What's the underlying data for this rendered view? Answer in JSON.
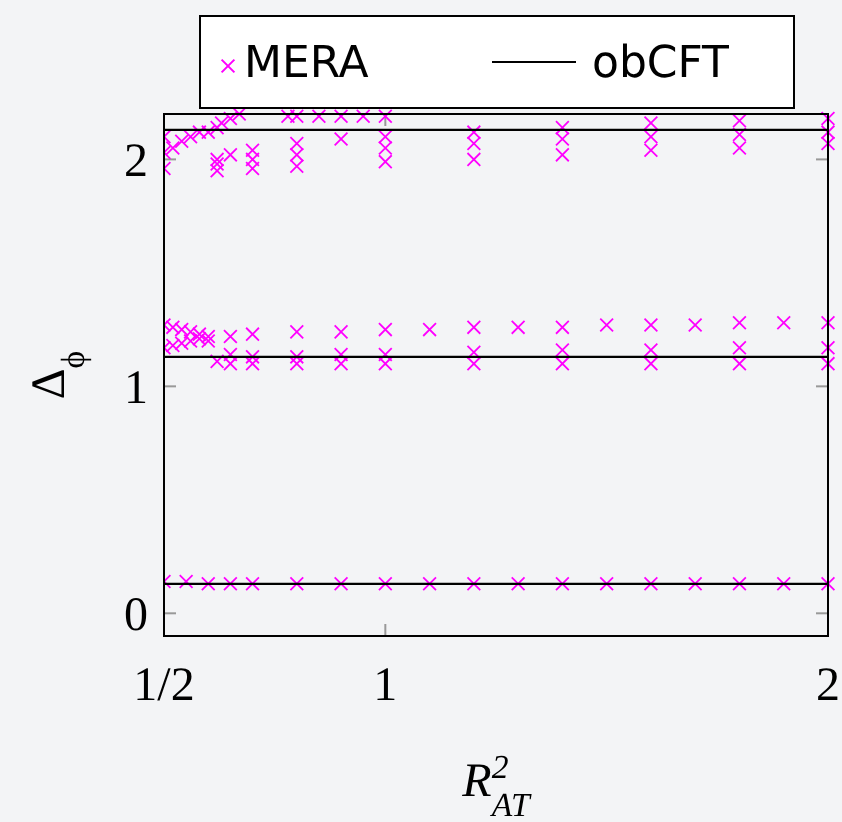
{
  "chart_data": {
    "type": "scatter",
    "xlabel": "R$^{2}$$_{AT}$",
    "ylabel": "Δ$_{ϕ}$",
    "xlim": [
      0.5,
      2
    ],
    "ylim": [
      -0.1,
      2.2
    ],
    "xticks": [
      {
        "value": 0.5,
        "label": "1/2"
      },
      1,
      2
    ],
    "yticks": [
      0,
      1,
      2
    ],
    "marker": "cross",
    "legend": "top",
    "grid": false,
    "series": [
      {
        "name": "MERA",
        "color": "#ff00ff",
        "x": [
          0.5,
          0.55,
          0.6,
          0.65,
          0.7,
          0.8,
          0.9,
          1.0,
          1.1,
          1.2,
          1.3,
          1.4,
          1.5,
          1.6,
          1.7,
          1.8,
          1.9,
          2.0
        ],
        "values": [
          0.14,
          0.14,
          0.13,
          0.13,
          0.13,
          0.13,
          0.13,
          0.13,
          0.13,
          0.13,
          0.13,
          0.13,
          0.13,
          0.13,
          0.13,
          0.13,
          0.13,
          0.13
        ]
      },
      {
        "type": "scatter",
        "color": "#ff00ff",
        "x": [
          0.5,
          0.52,
          0.54,
          0.56,
          0.58,
          0.6,
          0.65,
          0.7,
          0.8,
          0.9,
          1.0,
          1.1,
          1.2,
          1.3,
          1.4,
          1.5,
          1.6,
          1.7,
          1.8,
          1.9,
          2.0
        ],
        "values": [
          1.27,
          1.26,
          1.25,
          1.24,
          1.23,
          1.22,
          1.22,
          1.23,
          1.24,
          1.24,
          1.25,
          1.25,
          1.26,
          1.26,
          1.26,
          1.27,
          1.27,
          1.27,
          1.28,
          1.28,
          1.28
        ]
      },
      {
        "type": "scatter",
        "color": "#ff00ff",
        "x": [
          0.5,
          0.52,
          0.54,
          0.56,
          0.58,
          0.6,
          0.65,
          0.7,
          0.8,
          0.9,
          1.0,
          1.2,
          1.4,
          1.6,
          1.8,
          2.0
        ],
        "values": [
          1.17,
          1.18,
          1.19,
          1.2,
          1.21,
          1.2,
          1.14,
          1.13,
          1.13,
          1.14,
          1.14,
          1.15,
          1.16,
          1.16,
          1.17,
          1.17
        ]
      },
      {
        "type": "scatter",
        "color": "#ff00ff",
        "x": [
          0.62,
          0.65,
          0.7,
          0.8,
          0.9,
          1.0,
          1.2,
          1.4,
          1.6,
          1.8,
          2.0
        ],
        "values": [
          1.11,
          1.1,
          1.1,
          1.1,
          1.1,
          1.1,
          1.1,
          1.1,
          1.1,
          1.1,
          1.1
        ]
      },
      {
        "type": "scatter",
        "color": "#ff00ff",
        "x": [
          0.5,
          0.5,
          0.5,
          0.52,
          0.54,
          0.56,
          0.58,
          0.6,
          0.62
        ],
        "values": [
          1.96,
          2.03,
          2.1,
          2.05,
          2.08,
          2.1,
          2.12,
          2.12,
          2.14
        ]
      },
      {
        "type": "scatter",
        "color": "#ff00ff",
        "x": [
          0.63,
          0.65,
          0.67
        ],
        "values": [
          2.16,
          2.18,
          2.2
        ]
      },
      {
        "type": "scatter",
        "color": "#ff00ff",
        "x": [
          0.78,
          0.8,
          0.85,
          0.9,
          0.95,
          1.0
        ],
        "values": [
          2.19,
          2.19,
          2.19,
          2.19,
          2.19,
          2.19
        ]
      },
      {
        "type": "scatter",
        "color": "#ff00ff",
        "x": [
          0.62,
          0.65,
          0.7,
          0.8,
          0.9,
          1.0,
          1.2,
          1.4,
          1.6,
          1.8,
          2.0
        ],
        "values": [
          2.0,
          2.02,
          2.04,
          2.07,
          2.09,
          2.1,
          2.12,
          2.14,
          2.16,
          2.17,
          2.18
        ]
      },
      {
        "type": "scatter",
        "color": "#ff00ff",
        "x": [
          0.62,
          0.7,
          0.8,
          1.0,
          1.2,
          1.4,
          1.6,
          1.8,
          2.0
        ],
        "values": [
          1.98,
          2.0,
          2.02,
          2.05,
          2.07,
          2.09,
          2.1,
          2.11,
          2.12
        ]
      },
      {
        "type": "scatter",
        "color": "#ff00ff",
        "x": [
          0.62,
          0.7,
          0.8,
          1.0,
          1.2,
          1.4,
          1.6,
          1.8,
          2.0
        ],
        "values": [
          1.95,
          1.96,
          1.97,
          1.99,
          2.0,
          2.02,
          2.04,
          2.05,
          2.07
        ]
      },
      {
        "name": "obCFT",
        "type": "line",
        "marker": "none",
        "color": "#000000",
        "x": [
          0.5,
          2.0
        ],
        "values": [
          0.13,
          0.13
        ]
      },
      {
        "type": "line",
        "marker": "none",
        "color": "#000000",
        "x": [
          0.5,
          2.0
        ],
        "values": [
          1.13,
          1.13
        ]
      },
      {
        "type": "line",
        "marker": "none",
        "color": "#000000",
        "x": [
          0.5,
          2.0
        ],
        "values": [
          2.13,
          2.13
        ]
      }
    ]
  }
}
